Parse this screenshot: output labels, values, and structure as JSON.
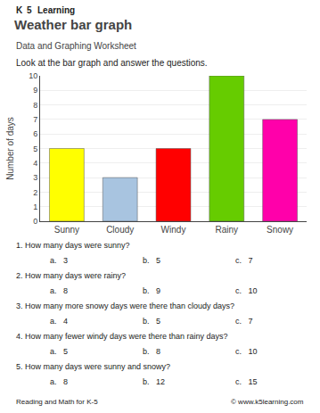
{
  "chart_data": {
    "type": "bar",
    "title": "Weather bar graph",
    "subtitle": "Data and Graphing Worksheet",
    "categories": [
      "Sunny",
      "Cloudy",
      "Windy",
      "Rainy",
      "Snowy"
    ],
    "values": [
      5,
      3,
      5,
      10,
      7
    ],
    "colors": [
      "#FFFF00",
      "#A8C4E0",
      "#FF0000",
      "#66CC00",
      "#FF00AA"
    ],
    "y_label": "Number of days",
    "ylim": [
      0,
      10
    ],
    "yticks": [
      0,
      1,
      2,
      3,
      4,
      5,
      6,
      7,
      8,
      9,
      10
    ],
    "grid": true,
    "annotations": [
      [
        "K",
        "5",
        "Learning"
      ],
      [
        "Look at the bar graph and answer the questions."
      ],
      [
        "1. How many days were sunny?"
      ],
      [
        "a.   3",
        "b.   5",
        "c.   7"
      ],
      [
        "2. How many days were rainy?"
      ],
      [
        "a.   8",
        "b.   9",
        "c.   10"
      ],
      [
        "3. How many more snowy days were there than cloudy days?"
      ],
      [
        "a.   4",
        "b.   5",
        "c.   7"
      ],
      [
        "4. How many fewer windy days were there than rainy days?"
      ],
      [
        "a.   5",
        "b.   8",
        "c.   10"
      ],
      [
        "5. How many days were sunny and snowy?"
      ],
      [
        "a.   8",
        "b.   12",
        "c.   15"
      ],
      [
        "Reading and Math for K-5",
        "© www.k5learning.com"
      ]
    ]
  }
}
